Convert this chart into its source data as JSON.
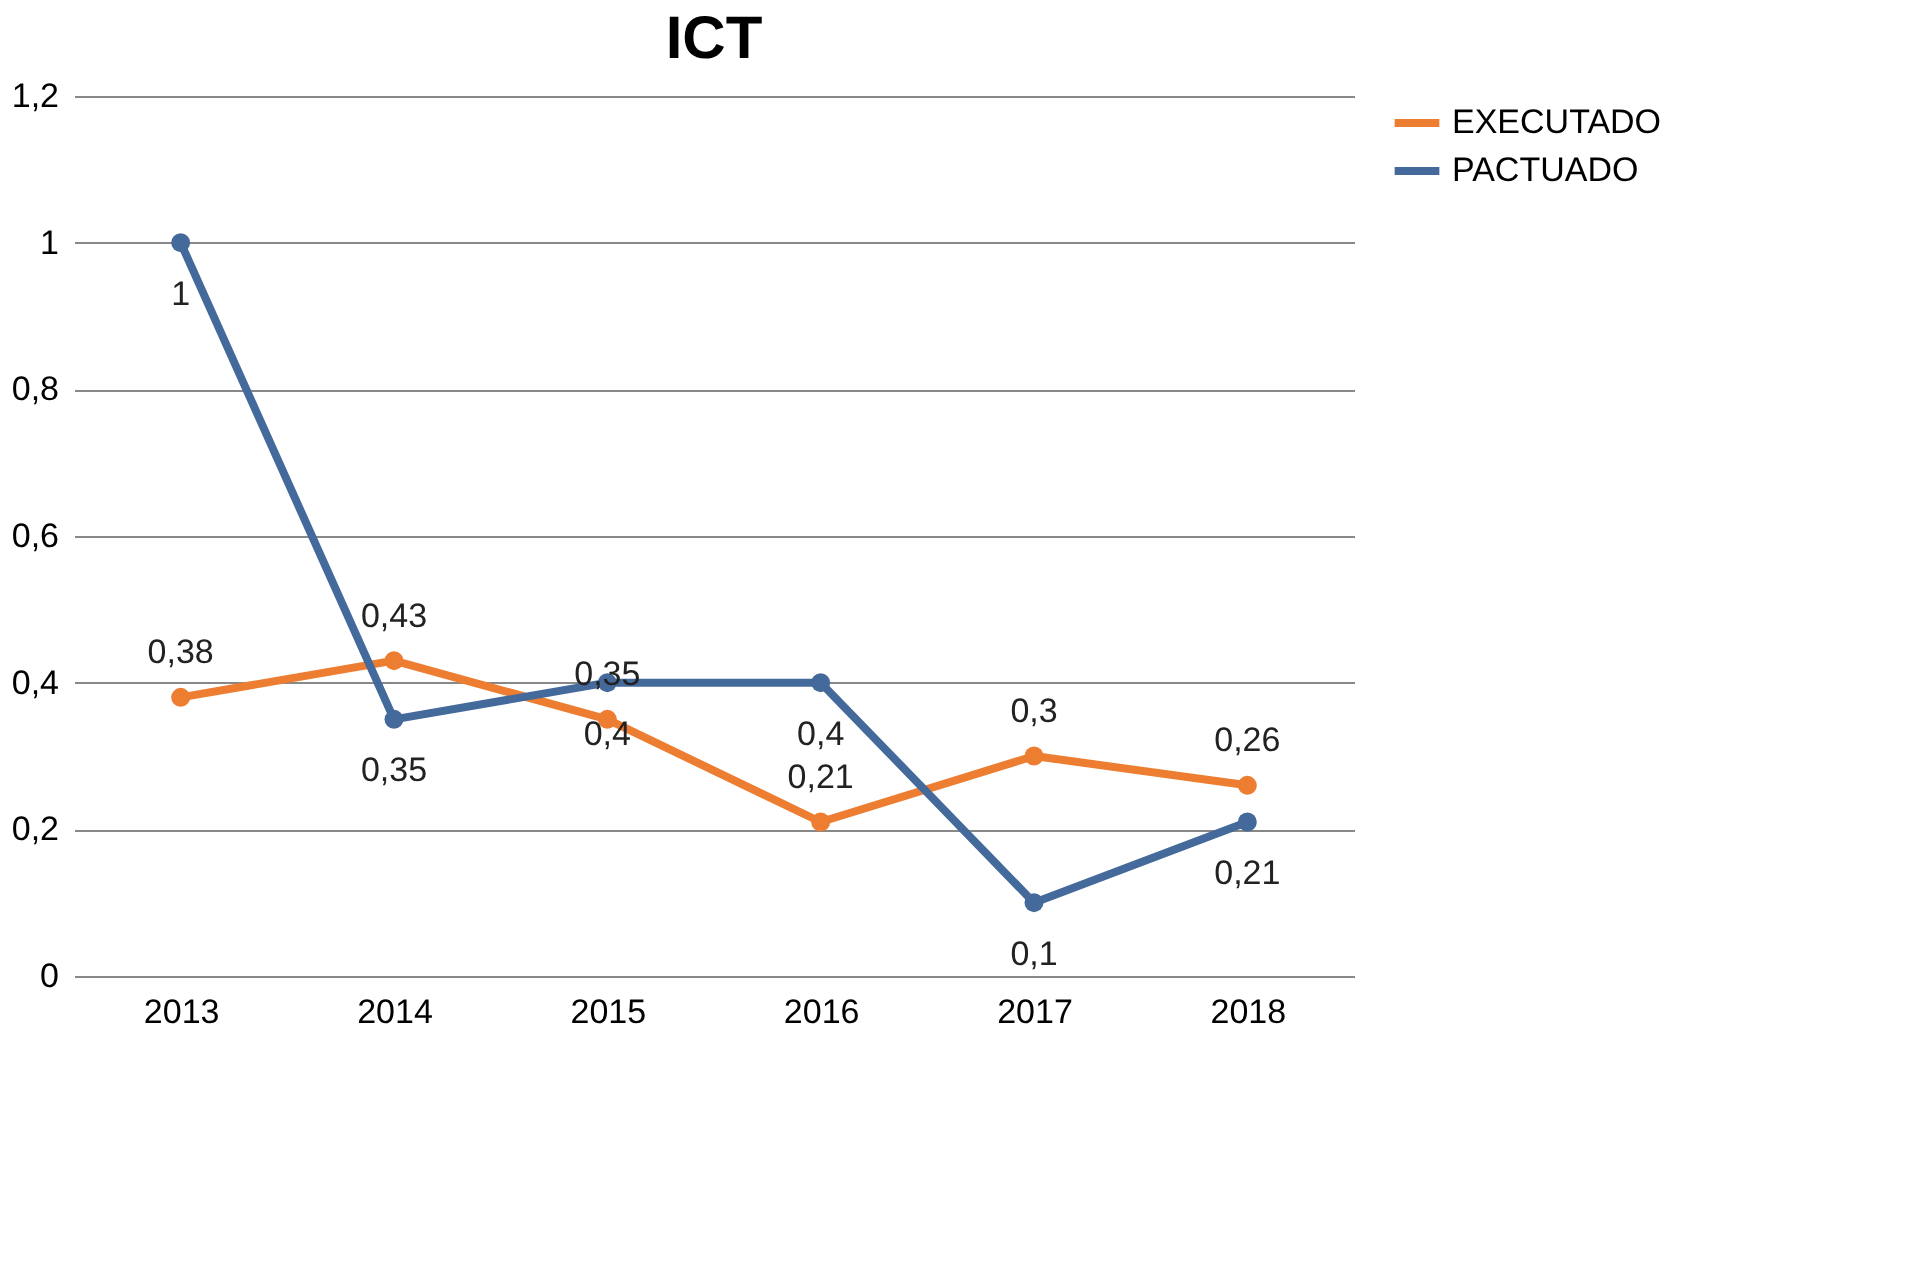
{
  "chart_data": {
    "type": "line",
    "title": "ICT",
    "categories": [
      "2013",
      "2014",
      "2015",
      "2016",
      "2017",
      "2018"
    ],
    "series": [
      {
        "name": "EXECUTADO",
        "color": "#ed7d31",
        "values": [
          0.38,
          0.43,
          0.35,
          0.21,
          0.3,
          0.26
        ],
        "value_labels": [
          "0,38",
          "0,43",
          "0,35",
          "0,21",
          "0,3",
          "0,26"
        ]
      },
      {
        "name": "PACTUADO",
        "color": "#44699b",
        "values": [
          1,
          0.35,
          0.4,
          0.4,
          0.1,
          0.21
        ],
        "value_labels": [
          "1",
          "0,35",
          "0,4",
          "0,4",
          "0,1",
          "0,21"
        ]
      }
    ],
    "ylim": [
      0,
      1.2
    ],
    "yticks": [
      0,
      {
        "value": 0.2,
        "label": "0,2"
      },
      {
        "value": 0.4,
        "label": "0,4"
      },
      {
        "value": 0.6,
        "label": "0,6"
      },
      {
        "value": 0.8,
        "label": "0,8"
      },
      1,
      {
        "value": 1.2,
        "label": "1,2"
      }
    ],
    "grid": "y",
    "legend": "right",
    "marker": "circle",
    "line_style": "solid"
  }
}
